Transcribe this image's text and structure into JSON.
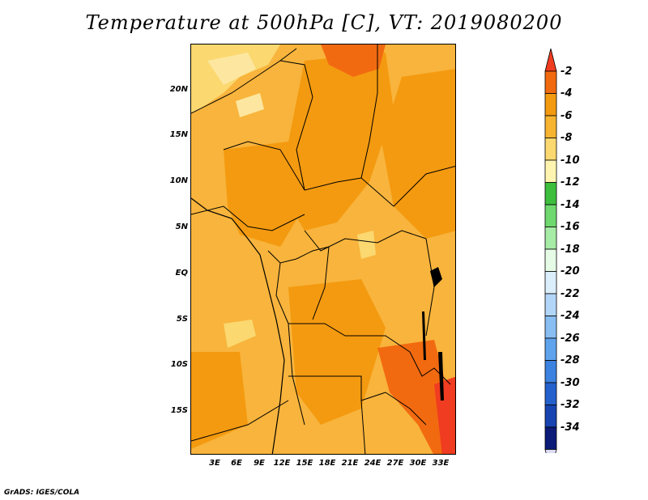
{
  "title": "Temperature at 500hPa [C], VT: 2019080200",
  "credit": "GrADS: IGES/COLA",
  "axes": {
    "lat_ticks": [
      "20N",
      "15N",
      "10N",
      "5N",
      "EQ",
      "5S",
      "10S",
      "15S"
    ],
    "lon_ticks": [
      "3E",
      "6E",
      "9E",
      "12E",
      "15E",
      "18E",
      "21E",
      "24E",
      "27E",
      "30E",
      "33E"
    ]
  },
  "colorbar": {
    "labels": [
      "-2",
      "-4",
      "-6",
      "-8",
      "-10",
      "-12",
      "-14",
      "-16",
      "-18",
      "-20",
      "-22",
      "-24",
      "-26",
      "-28",
      "-30",
      "-32",
      "-34"
    ],
    "colors": [
      "#f03c20",
      "#f26a10",
      "#f49a10",
      "#f6b430",
      "#fbd870",
      "#fff5b0",
      "#3dbf3d",
      "#6fd86f",
      "#a6eba6",
      "#e6fbe6",
      "#daeefb",
      "#b2d6f8",
      "#89bef3",
      "#5ea3ec",
      "#3c82e0",
      "#2461cc",
      "#1744b1",
      "#0c1a78",
      "#dcdcf5"
    ]
  },
  "map": {
    "background_color": "#f8b43c",
    "region": "Central Africa"
  }
}
